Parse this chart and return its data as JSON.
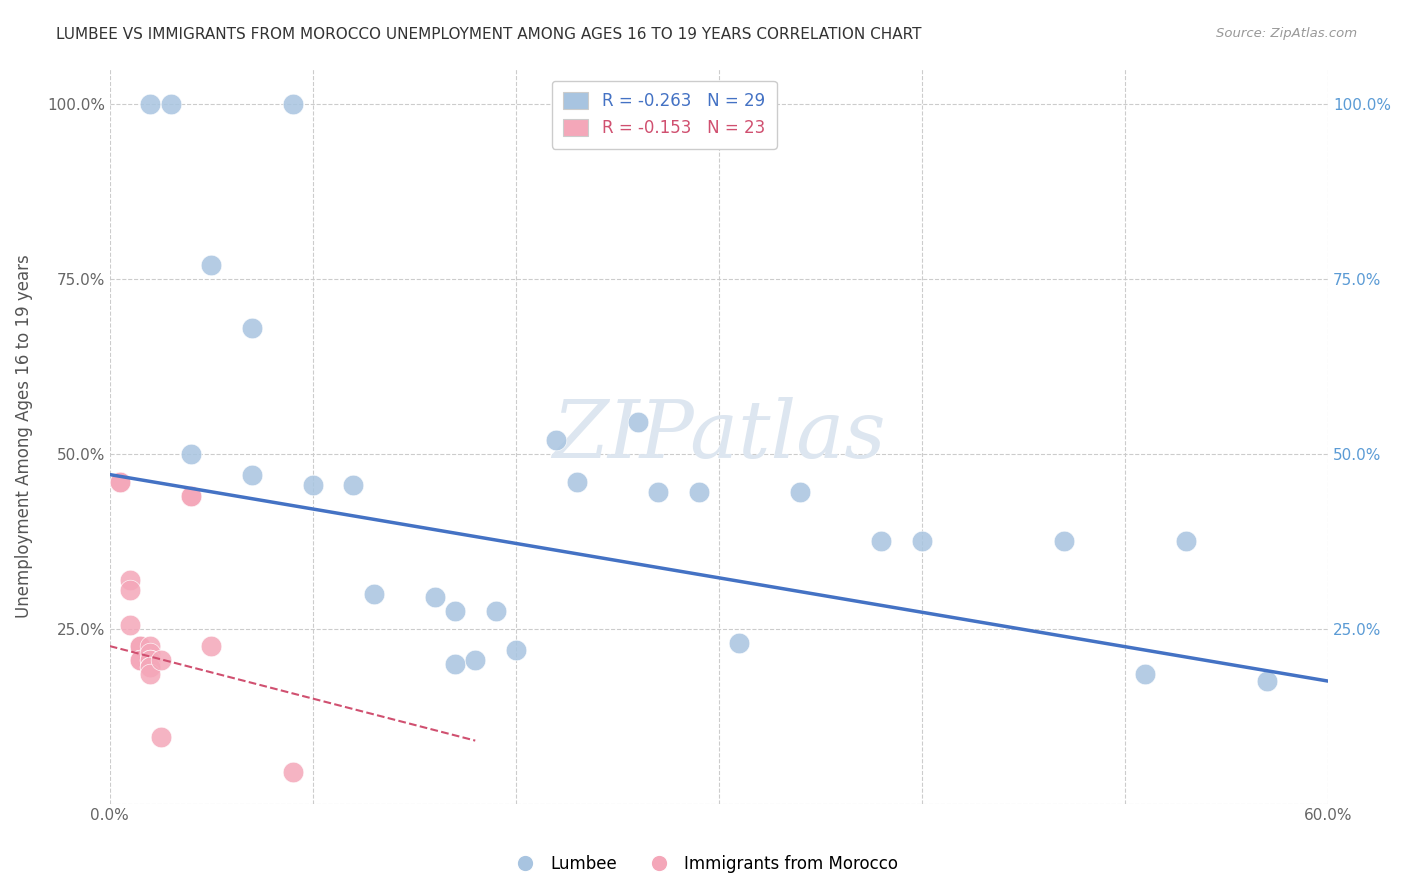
{
  "title": "LUMBEE VS IMMIGRANTS FROM MOROCCO UNEMPLOYMENT AMONG AGES 16 TO 19 YEARS CORRELATION CHART",
  "source": "Source: ZipAtlas.com",
  "ylabel": "Unemployment Among Ages 16 to 19 years",
  "xlabel": "",
  "watermark": "ZIPatlas",
  "xlim": [
    0.0,
    0.6
  ],
  "ylim": [
    0.0,
    1.05
  ],
  "xticks": [
    0.0,
    0.1,
    0.2,
    0.3,
    0.4,
    0.5,
    0.6
  ],
  "xticklabels": [
    "0.0%",
    "",
    "",
    "",
    "",
    "",
    "60.0%"
  ],
  "yticks": [
    0.0,
    0.25,
    0.5,
    0.75,
    1.0
  ],
  "yticklabels_left": [
    "",
    "25.0%",
    "50.0%",
    "75.0%",
    "100.0%"
  ],
  "yticklabels_right": [
    "",
    "25.0%",
    "50.0%",
    "75.0%",
    "100.0%"
  ],
  "lumbee_R": -0.263,
  "lumbee_N": 29,
  "morocco_R": -0.153,
  "morocco_N": 23,
  "lumbee_color": "#a8c4e0",
  "morocco_color": "#f4a7b9",
  "lumbee_line_color": "#4472C4",
  "morocco_line_color": "#d05070",
  "lumbee_scatter": [
    [
      0.02,
      1.0
    ],
    [
      0.03,
      1.0
    ],
    [
      0.09,
      1.0
    ],
    [
      0.05,
      0.77
    ],
    [
      0.07,
      0.68
    ],
    [
      0.04,
      0.5
    ],
    [
      0.07,
      0.47
    ],
    [
      0.1,
      0.455
    ],
    [
      0.12,
      0.455
    ],
    [
      0.13,
      0.3
    ],
    [
      0.16,
      0.295
    ],
    [
      0.17,
      0.275
    ],
    [
      0.19,
      0.275
    ],
    [
      0.17,
      0.2
    ],
    [
      0.18,
      0.205
    ],
    [
      0.2,
      0.22
    ],
    [
      0.22,
      0.52
    ],
    [
      0.23,
      0.46
    ],
    [
      0.26,
      0.545
    ],
    [
      0.27,
      0.445
    ],
    [
      0.29,
      0.445
    ],
    [
      0.31,
      0.23
    ],
    [
      0.34,
      0.445
    ],
    [
      0.38,
      0.375
    ],
    [
      0.4,
      0.375
    ],
    [
      0.47,
      0.375
    ],
    [
      0.51,
      0.185
    ],
    [
      0.53,
      0.375
    ],
    [
      0.57,
      0.175
    ]
  ],
  "morocco_scatter": [
    [
      0.005,
      0.46
    ],
    [
      0.005,
      0.46
    ],
    [
      0.01,
      0.32
    ],
    [
      0.01,
      0.305
    ],
    [
      0.01,
      0.255
    ],
    [
      0.015,
      0.225
    ],
    [
      0.015,
      0.225
    ],
    [
      0.015,
      0.225
    ],
    [
      0.015,
      0.205
    ],
    [
      0.015,
      0.205
    ],
    [
      0.02,
      0.225
    ],
    [
      0.02,
      0.215
    ],
    [
      0.02,
      0.205
    ],
    [
      0.02,
      0.205
    ],
    [
      0.02,
      0.195
    ],
    [
      0.02,
      0.195
    ],
    [
      0.02,
      0.185
    ],
    [
      0.025,
      0.205
    ],
    [
      0.025,
      0.095
    ],
    [
      0.04,
      0.44
    ],
    [
      0.04,
      0.44
    ],
    [
      0.05,
      0.225
    ],
    [
      0.09,
      0.045
    ]
  ],
  "lumbee_line_x": [
    0.0,
    0.6
  ],
  "lumbee_line_y": [
    0.47,
    0.175
  ],
  "morocco_line_x": [
    0.0,
    0.18
  ],
  "morocco_line_y": [
    0.225,
    0.09
  ]
}
